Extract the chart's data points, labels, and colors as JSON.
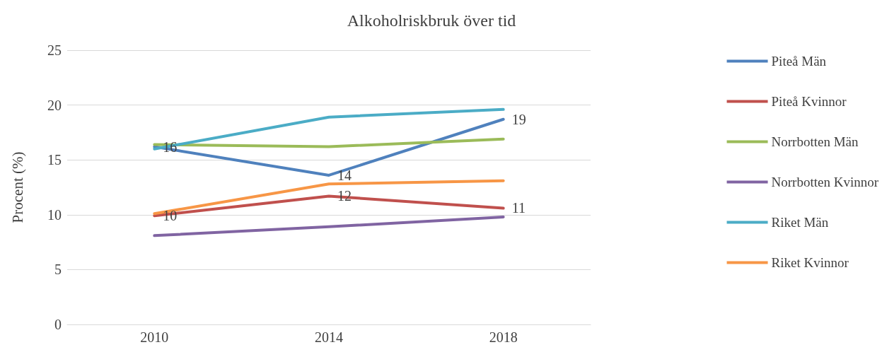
{
  "chart_data": {
    "type": "line",
    "title": "Alkoholriskbruk över tid",
    "ylabel": "Procent (%)",
    "categories": [
      "2010",
      "2014",
      "2018"
    ],
    "series": [
      {
        "name": "Piteå Män",
        "color": "#4f81bd",
        "values": [
          16.2,
          13.6,
          18.7
        ],
        "value_labels": [
          "16",
          "14",
          "19"
        ]
      },
      {
        "name": "Piteå Kvinnor",
        "color": "#c0504d",
        "values": [
          9.9,
          11.7,
          10.6
        ],
        "value_labels": [
          "10",
          "12",
          "11"
        ]
      },
      {
        "name": "Norrbotten Män",
        "color": "#9bbb59",
        "values": [
          16.4,
          16.2,
          16.9
        ]
      },
      {
        "name": "Norrbotten Kvinnor",
        "color": "#8064a2",
        "values": [
          8.1,
          8.9,
          9.8
        ]
      },
      {
        "name": "Riket Män",
        "color": "#4bacc6",
        "values": [
          16.0,
          18.9,
          19.6
        ]
      },
      {
        "name": "Riket Kvinnor",
        "color": "#f79646",
        "values": [
          10.1,
          12.8,
          13.1
        ]
      }
    ],
    "ylim": [
      0,
      25
    ],
    "yticks": [
      0,
      5,
      10,
      15,
      20,
      25
    ],
    "grid": "y",
    "legend": "right",
    "marker": "none",
    "line_style": "solid"
  }
}
